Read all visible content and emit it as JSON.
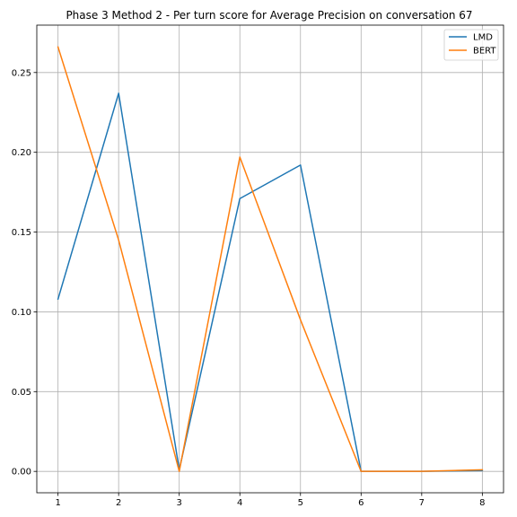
{
  "chart_data": {
    "type": "line",
    "title": "Phase 3 Method 2 - Per turn score for Average Precision on conversation 67",
    "xlabel": "",
    "ylabel": "",
    "x": [
      1,
      2,
      3,
      4,
      5,
      6,
      7,
      8
    ],
    "xlim": [
      0.65,
      8.35
    ],
    "ylim": [
      -0.0134,
      0.2797
    ],
    "xticks": [
      "1",
      "2",
      "3",
      "4",
      "5",
      "6",
      "7",
      "8"
    ],
    "yticks": [
      "0.00",
      "0.05",
      "0.10",
      "0.15",
      "0.20",
      "0.25"
    ],
    "grid": true,
    "legend_placement": "upper right",
    "series": [
      {
        "name": "LMD",
        "color": "#1f77b4",
        "values": [
          0.108,
          0.237,
          0.001,
          0.171,
          0.192,
          0.0,
          0.0,
          0.0005
        ]
      },
      {
        "name": "BERT",
        "color": "#ff7f0e",
        "values": [
          0.266,
          0.145,
          0.0,
          0.197,
          0.095,
          0.0,
          0.0,
          0.001
        ]
      }
    ]
  }
}
